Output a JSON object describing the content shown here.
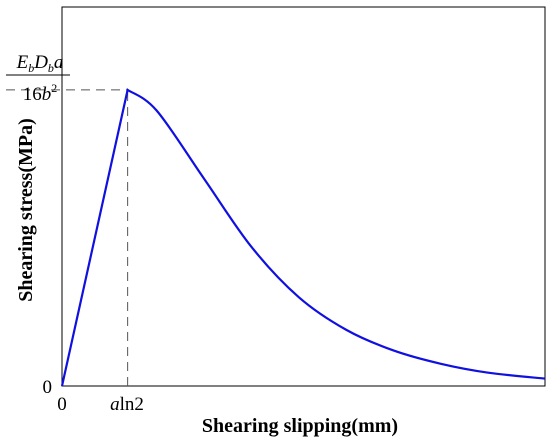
{
  "chart_data": {
    "type": "line",
    "title": "",
    "xlabel": "Shearing slipping(mm)",
    "ylabel": "Shearing stress(MPa)",
    "x_ticks": [
      {
        "label": "0",
        "x": 0
      },
      {
        "label_italic": "a",
        "label": "ln2",
        "x": 0.693
      }
    ],
    "y_ticks": [
      {
        "label": "0",
        "y": 0
      },
      {
        "label_numerator": "EbDba",
        "label_denominator": "16b2",
        "y": 1.0
      }
    ],
    "peak_label": {
      "numerator": [
        {
          "text": "E",
          "italic": true
        },
        {
          "text": "b",
          "italic": true,
          "sub": true
        },
        {
          "text": "D",
          "italic": true
        },
        {
          "text": "b",
          "italic": true,
          "sub": true
        },
        {
          "text": "a",
          "italic": true
        }
      ],
      "denominator": [
        {
          "text": "16",
          "italic": false
        },
        {
          "text": "b",
          "italic": true
        },
        {
          "text": "2",
          "italic": false,
          "sup": true
        }
      ]
    },
    "x_tick_label_parts": {
      "italic": "a",
      "normal": "ln2"
    },
    "xlim": [
      0,
      5.1
    ],
    "ylim": [
      0,
      1.28
    ],
    "grid": false,
    "legend": "none",
    "series": [
      {
        "color": "#1010e0",
        "description": "linear rise to peak then bell-shaped decay",
        "x": [
          0,
          0.693,
          1.0,
          1.5,
          2.0,
          2.5,
          3.0,
          3.5,
          4.0,
          4.5,
          5.1
        ],
        "y": [
          0,
          1.0,
          0.93,
          0.7,
          0.47,
          0.3,
          0.19,
          0.12,
          0.075,
          0.045,
          0.025
        ]
      }
    ],
    "reference_lines": [
      {
        "style": "dashed",
        "orientation": "horizontal",
        "y": 1.0,
        "x_from": 0,
        "x_to": 0.693
      },
      {
        "style": "dashed",
        "orientation": "vertical",
        "x": 0.693,
        "y_from": 0,
        "y_to": 1.0
      }
    ]
  }
}
